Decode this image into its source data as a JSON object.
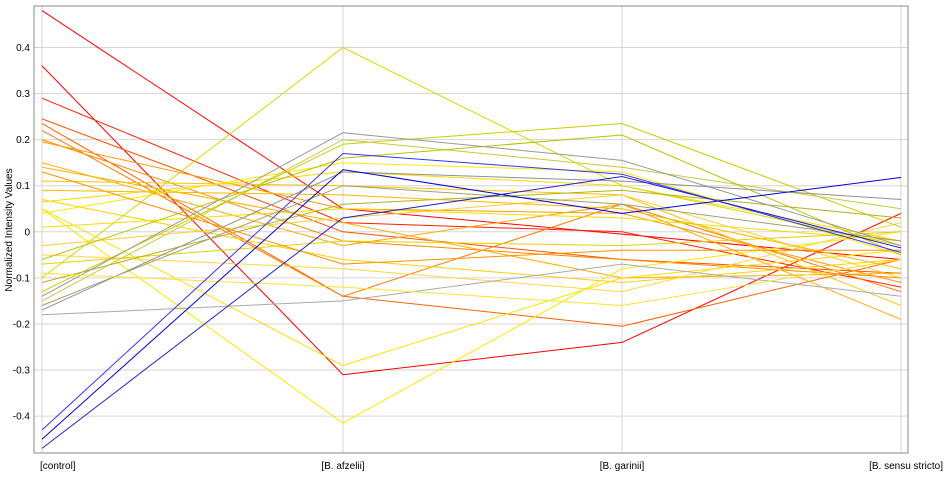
{
  "chart_data": {
    "type": "line",
    "xlabel": "",
    "ylabel": "Normalized Intensity Values",
    "categories": [
      "[control]",
      "[B. afzelii]",
      "[B. garinii]",
      "[B. sensu stricto]"
    ],
    "yticks": [
      "0.4",
      "0.3",
      "0.2",
      "0.1",
      "0",
      "-0.1",
      "-0.2",
      "-0.3",
      "-0.4"
    ],
    "ytick_values": [
      0.4,
      0.3,
      0.2,
      0.1,
      0,
      -0.1,
      -0.2,
      -0.3,
      -0.4
    ],
    "ylim": [
      -0.48,
      0.49
    ],
    "grid": true,
    "series": [
      {
        "color": "#ff0000",
        "values": [
          0.48,
          0.05,
          -0.005,
          -0.06
        ]
      },
      {
        "color": "#ff0000",
        "values": [
          0.36,
          -0.31,
          -0.24,
          0.04
        ]
      },
      {
        "color": "#ff2000",
        "values": [
          0.29,
          0.02,
          0.0,
          -0.12
        ]
      },
      {
        "color": "#ff5000",
        "values": [
          0.245,
          0.0,
          -0.06,
          -0.09
        ]
      },
      {
        "color": "#ff6000",
        "values": [
          0.235,
          -0.14,
          -0.205,
          -0.06
        ]
      },
      {
        "color": "#ff7a00",
        "values": [
          0.22,
          -0.14,
          0.06,
          -0.13
        ]
      },
      {
        "color": "#ff8a00",
        "values": [
          0.2,
          -0.02,
          -0.06,
          -0.1
        ]
      },
      {
        "color": "#ff9a00",
        "values": [
          0.195,
          0.05,
          0.04,
          -0.11
        ]
      },
      {
        "color": "#ffaa00",
        "values": [
          0.15,
          -0.03,
          0.06,
          -0.19
        ]
      },
      {
        "color": "#ffb000",
        "values": [
          0.14,
          0.02,
          -0.1,
          -0.09
        ]
      },
      {
        "color": "#ffc400",
        "values": [
          0.11,
          0.1,
          0.08,
          -0.16
        ]
      },
      {
        "color": "#ffd000",
        "values": [
          0.07,
          -0.06,
          -0.11,
          -0.06
        ]
      },
      {
        "color": "#ffd800",
        "values": [
          0.065,
          0.13,
          0.1,
          -0.02
        ]
      },
      {
        "color": "#ffe000",
        "values": [
          0.05,
          -0.29,
          -0.1,
          -0.04
        ]
      },
      {
        "color": "#ffe600",
        "values": [
          0.05,
          -0.415,
          -0.08,
          0.0
        ]
      },
      {
        "color": "#ffea00",
        "values": [
          0.04,
          0.15,
          0.13,
          -0.05
        ]
      },
      {
        "color": "#f0e000",
        "values": [
          0.01,
          0.05,
          0.03,
          -0.02
        ]
      },
      {
        "color": "#ffcc33",
        "values": [
          -0.03,
          0.03,
          0.08,
          -0.1
        ]
      },
      {
        "color": "#ffd740",
        "values": [
          -0.05,
          -0.08,
          -0.13,
          0.02
        ]
      },
      {
        "color": "#e6d000",
        "values": [
          -0.07,
          -0.02,
          -0.03,
          0.0
        ]
      },
      {
        "color": "#d8d800",
        "values": [
          -0.1,
          0.4,
          0.1,
          -0.03
        ]
      },
      {
        "color": "#cccc00",
        "values": [
          -0.13,
          0.19,
          0.235,
          0.01
        ]
      },
      {
        "color": "#c8c840",
        "values": [
          -0.15,
          0.2,
          0.14,
          0.05
        ]
      },
      {
        "color": "#bcc000",
        "values": [
          -0.06,
          0.16,
          0.21,
          -0.05
        ]
      },
      {
        "color": "#b0b020",
        "values": [
          -0.11,
          0.06,
          0.09,
          0.03
        ]
      },
      {
        "color": "#999999",
        "values": [
          -0.14,
          0.215,
          0.155,
          -0.03
        ]
      },
      {
        "color": "#909090",
        "values": [
          -0.17,
          0.13,
          0.11,
          0.07
        ]
      },
      {
        "color": "#aaaaaa",
        "values": [
          -0.18,
          -0.15,
          -0.07,
          -0.14
        ]
      },
      {
        "color": "#a0a070",
        "values": [
          -0.16,
          0.1,
          0.06,
          -0.02
        ]
      },
      {
        "color": "#ffe233",
        "values": [
          -0.09,
          -0.12,
          -0.16,
          -0.06
        ]
      },
      {
        "color": "#ff9000",
        "values": [
          0.13,
          -0.07,
          -0.04,
          -0.04
        ]
      },
      {
        "color": "#ffb800",
        "values": [
          0.09,
          0.08,
          0.05,
          -0.08
        ]
      },
      {
        "color": "#3333ff",
        "values": [
          -0.43,
          0.17,
          0.125,
          -0.045
        ]
      },
      {
        "color": "#0000dd",
        "values": [
          -0.45,
          0.135,
          0.04,
          0.118
        ]
      },
      {
        "color": "#2222cc",
        "values": [
          -0.47,
          0.03,
          0.12,
          -0.035
        ]
      }
    ]
  }
}
